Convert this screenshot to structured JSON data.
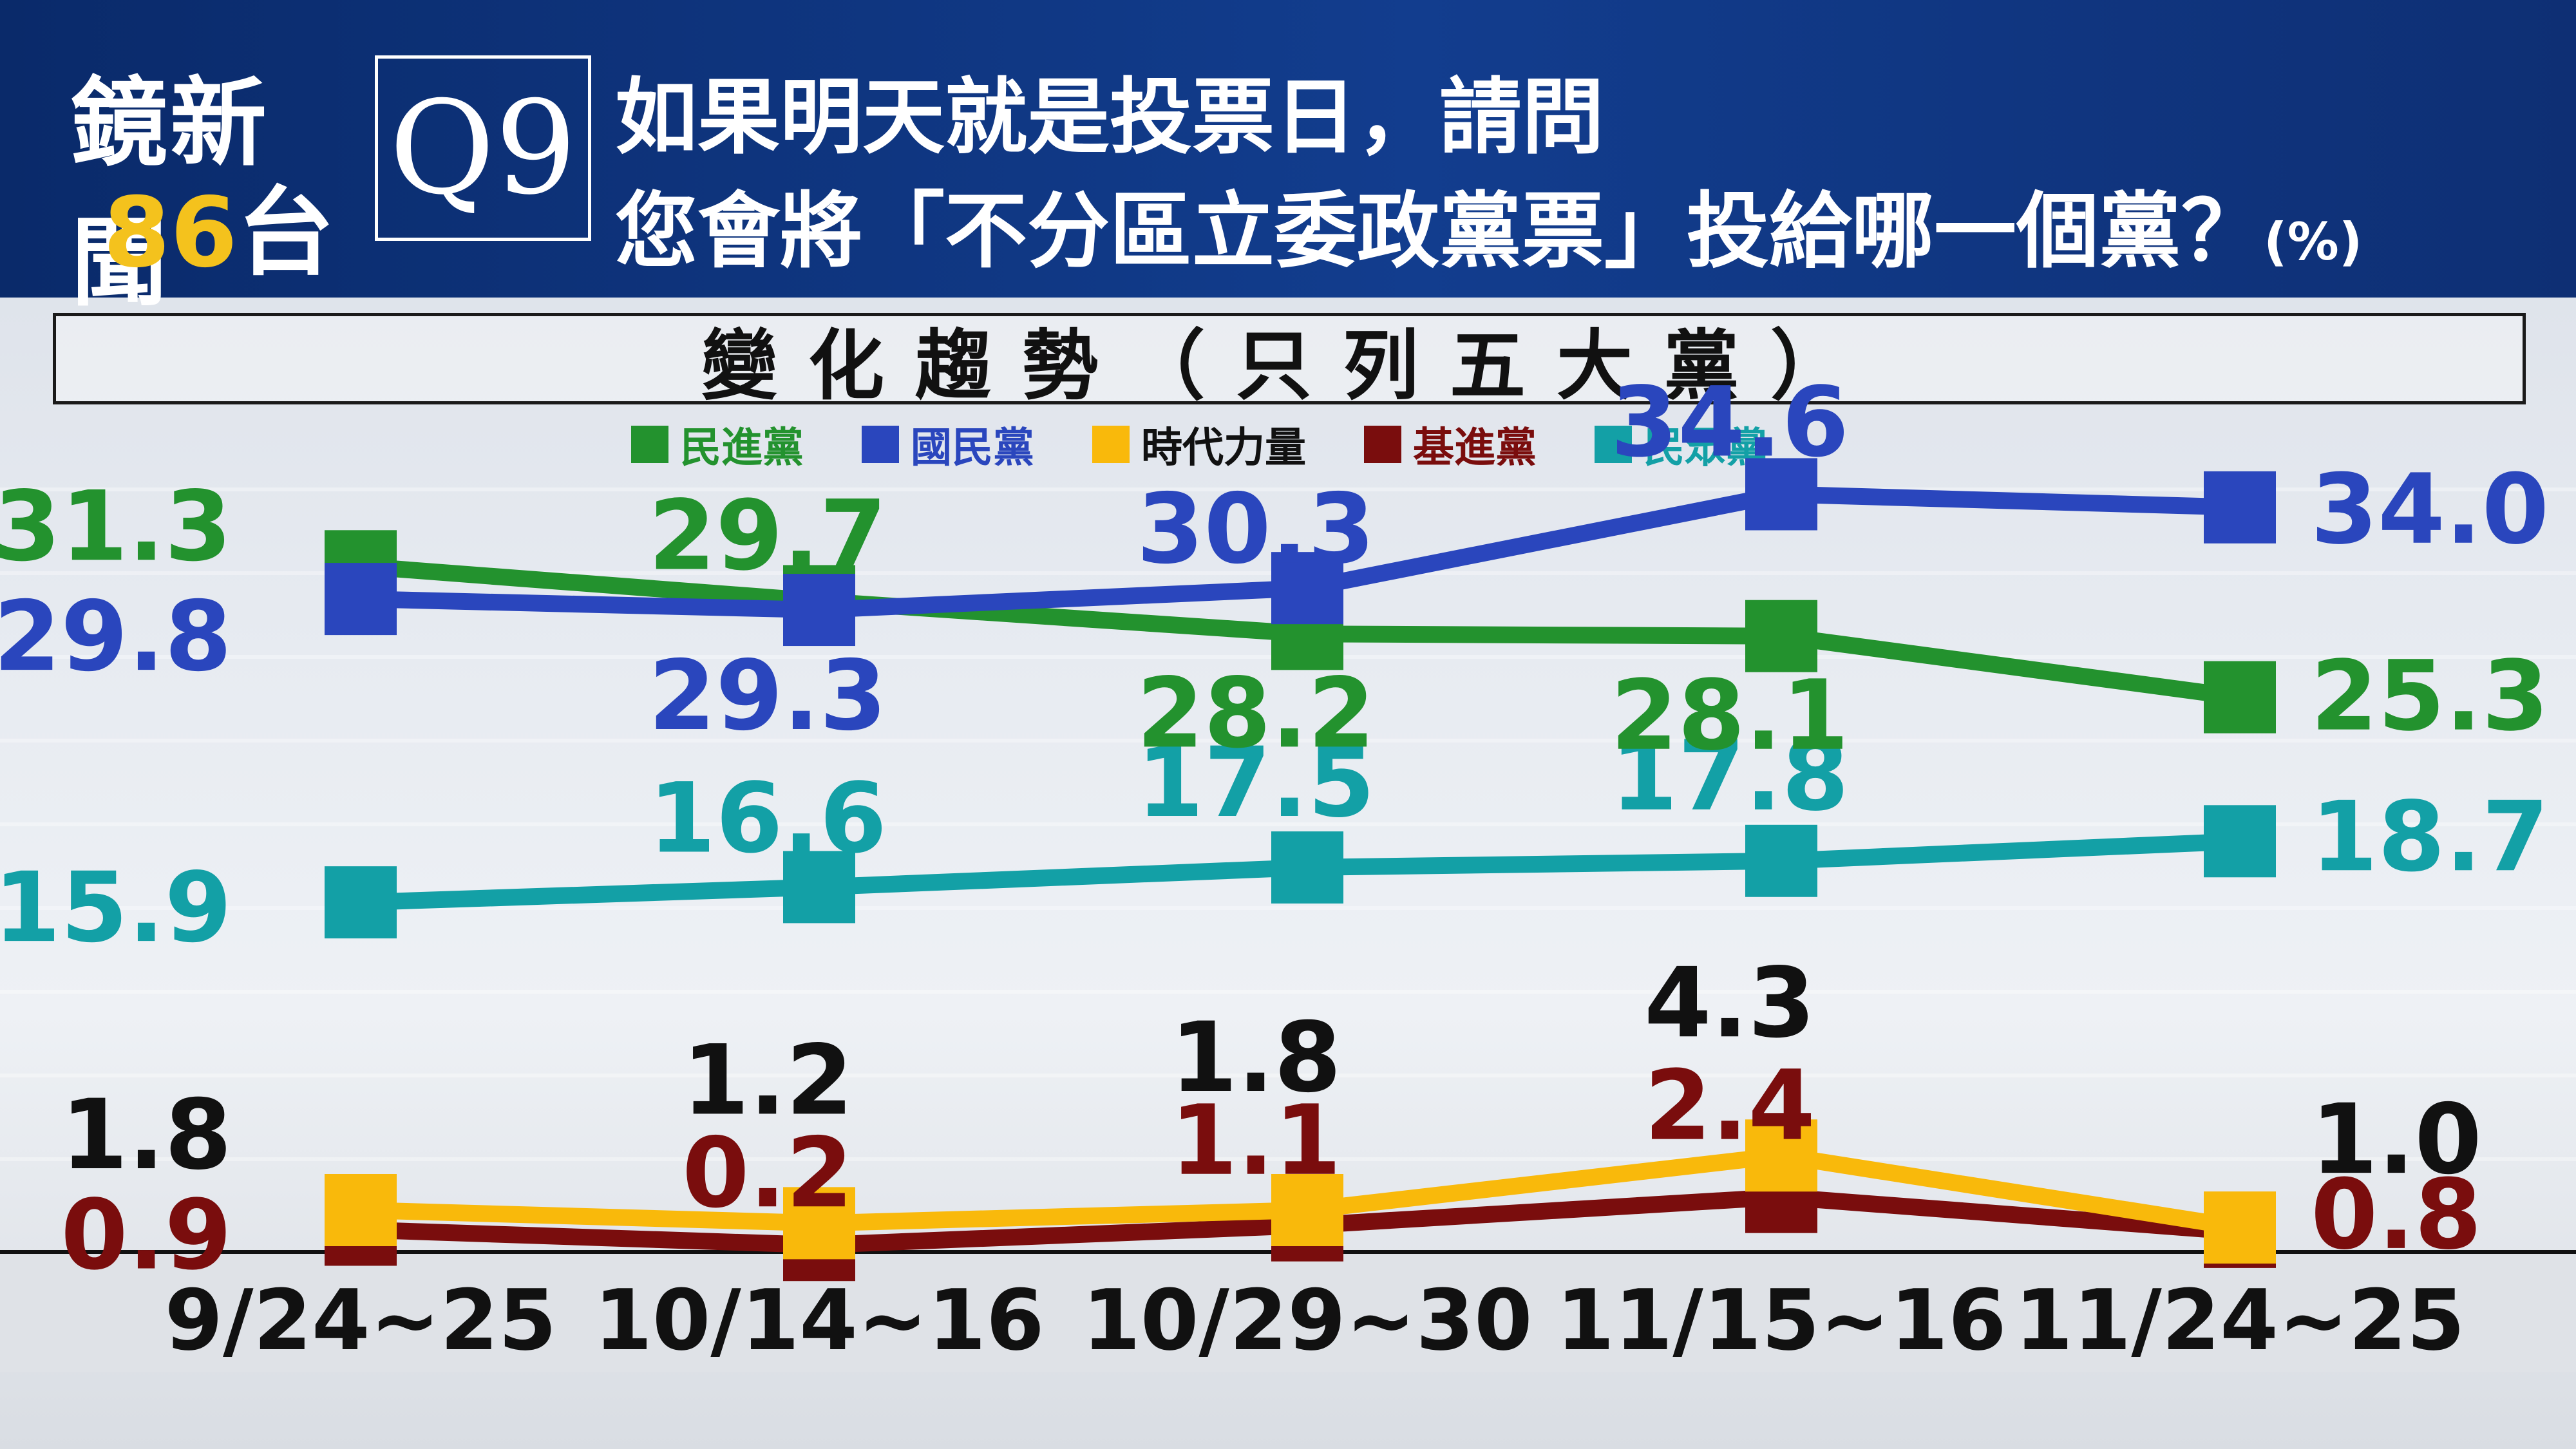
{
  "header": {
    "brand_name": "鏡新聞",
    "brand_channel_num": "86",
    "brand_channel_suffix": "台",
    "question_id": "Q9",
    "question_line1": "如果明天就是投票日，請問",
    "question_line2": "您會將「不分區立委政黨票」投給哪一個黨？",
    "question_unit": "(%)"
  },
  "chart_data": {
    "type": "line",
    "title": "變化趨勢（只列五大黨）",
    "categories": [
      "9/24~25",
      "10/14~16",
      "10/29~30",
      "11/15~16",
      "11/24~25"
    ],
    "ylim": [
      0,
      36
    ],
    "legend_position": "top-center",
    "series": [
      {
        "name": "民進黨",
        "color": "#23922e",
        "label_color": "#23922e",
        "values": [
          31.3,
          29.7,
          28.2,
          28.1,
          25.3
        ],
        "labels": [
          "31.3",
          "29.7",
          "28.2",
          "28.1",
          "25.3"
        ]
      },
      {
        "name": "國民黨",
        "color": "#2a46bd",
        "label_color": "#2a46bd",
        "values": [
          29.8,
          29.3,
          30.3,
          34.6,
          34.0
        ],
        "labels": [
          "29.8",
          "29.3",
          "30.3",
          "34.6",
          "34.0"
        ]
      },
      {
        "name": "時代力量",
        "color": "#f9b90b",
        "label_color": "#111111",
        "values": [
          1.8,
          1.2,
          1.8,
          4.3,
          1.0
        ],
        "labels": [
          "1.8",
          "1.2",
          "1.8",
          "4.3",
          "1.0"
        ]
      },
      {
        "name": "基進黨",
        "color": "#7a0d0d",
        "label_color": "#7a0d0d",
        "values": [
          0.9,
          0.2,
          1.1,
          2.4,
          0.8
        ],
        "labels": [
          "0.9",
          "0.2",
          "1.1",
          "2.4",
          "0.8"
        ]
      },
      {
        "name": "民眾黨",
        "color": "#13a0a6",
        "label_color": "#13a0a6",
        "values": [
          15.9,
          16.6,
          17.5,
          17.8,
          18.7
        ],
        "labels": [
          "15.9",
          "16.6",
          "17.5",
          "17.8",
          "18.7"
        ]
      }
    ]
  }
}
